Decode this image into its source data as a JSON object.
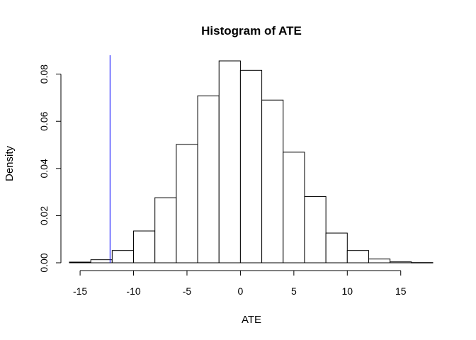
{
  "chart_data": {
    "type": "bar",
    "title": "Histogram of ATE",
    "xlabel": "ATE",
    "ylabel": "Density",
    "xlim": [
      -16,
      18
    ],
    "ylim": [
      0,
      0.088
    ],
    "x_ticks": [
      -15,
      -10,
      -5,
      0,
      5,
      10,
      15
    ],
    "x_tick_labels": [
      "-15",
      "-10",
      "-5",
      "0",
      "5",
      "10",
      "15"
    ],
    "y_ticks": [
      0,
      0.02,
      0.04,
      0.06,
      0.08
    ],
    "y_tick_labels": [
      "0.00",
      "0.02",
      "0.04",
      "0.06",
      "0.08"
    ],
    "bin_edges": [
      -16,
      -14,
      -12,
      -10,
      -8,
      -6,
      -4,
      -2,
      0,
      2,
      4,
      6,
      8,
      10,
      12,
      14,
      16,
      18
    ],
    "values": [
      0.0003,
      0.0013,
      0.0052,
      0.0135,
      0.0276,
      0.0502,
      0.0708,
      0.0856,
      0.0816,
      0.069,
      0.0469,
      0.0281,
      0.0126,
      0.0052,
      0.0016,
      0.0004,
      0.0001
    ],
    "reference_line": {
      "x": -12.2,
      "color": "#0000ff"
    },
    "grid": false
  }
}
